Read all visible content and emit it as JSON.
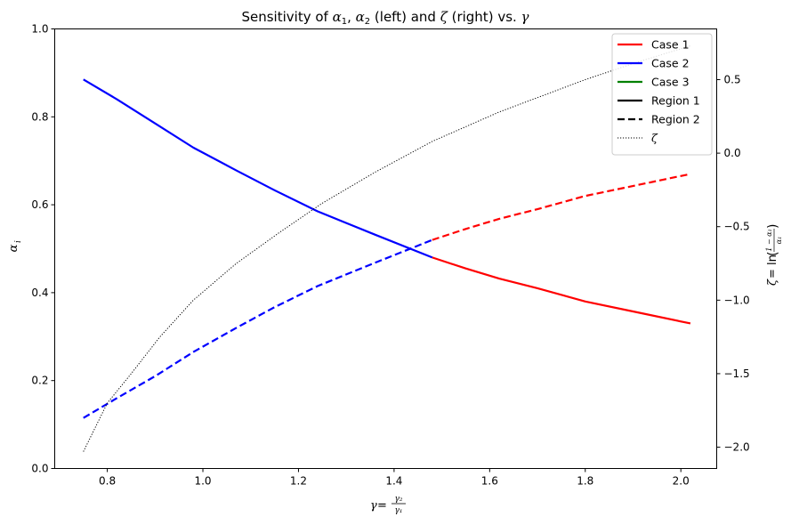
{
  "chart_data": {
    "type": "line",
    "title_parts": {
      "t1": "Sensitivity of ",
      "a1": "α",
      "a1sub": "1",
      "comma": ", ",
      "a2": "α",
      "a2sub": "2",
      "t2": " (left) and ",
      "zeta": "ζ",
      "t3": " (right) vs. ",
      "gamma": "γ"
    },
    "xlabel_parts": {
      "gamma": "γ",
      "eq": " = ",
      "num": "γ₂",
      "den": "γ₁"
    },
    "ylabel_left_parts": {
      "alpha": "α",
      "sub": "i"
    },
    "ylabel_right_parts": {
      "zeta": "ζ",
      "eq": " = ln",
      "num": "1 − α₁",
      "den": "α₁"
    },
    "xlim": [
      0.69,
      2.075
    ],
    "ylim": [
      0,
      1
    ],
    "y2lim": [
      -2.145,
      0.845
    ],
    "x_ticks": [
      0.8,
      1.0,
      1.2,
      1.4,
      1.6,
      1.8,
      2.0
    ],
    "x_tick_labels": [
      "0.8",
      "1.0",
      "1.2",
      "1.4",
      "1.6",
      "1.8",
      "2.0"
    ],
    "y_ticks": [
      0.0,
      0.2,
      0.4,
      0.6,
      0.8,
      1.0
    ],
    "y_tick_labels": [
      "0.0",
      "0.2",
      "0.4",
      "0.6",
      "0.8",
      "1.0"
    ],
    "y2_ticks": [
      -2.0,
      -1.5,
      -1.0,
      -0.5,
      0.0,
      0.5
    ],
    "y2_tick_labels": [
      "−2.0",
      "−1.5",
      "−1.0",
      "−0.5",
      "0.0",
      "0.5"
    ],
    "grid": false,
    "legend_position": "top-right",
    "legend": [
      {
        "label": "Case 1",
        "color": "#ff0000",
        "style": "solid"
      },
      {
        "label": "Case 2",
        "color": "#0000ff",
        "style": "solid"
      },
      {
        "label": "Case 3",
        "color": "#008000",
        "style": "solid"
      },
      {
        "label": "Region 1",
        "color": "#000000",
        "style": "solid"
      },
      {
        "label": "Region 2",
        "color": "#000000",
        "style": "dashed"
      },
      {
        "label": "ζ",
        "color": "#000000",
        "style": "dotted"
      }
    ],
    "series": [
      {
        "case": "Case 2",
        "region": "Region 1",
        "axis": "left",
        "color": "#0000ff",
        "style": "solid",
        "x": [
          0.75,
          0.82,
          0.9,
          0.98,
          1.07,
          1.15,
          1.24,
          1.36,
          1.48
        ],
        "y": [
          0.885,
          0.84,
          0.785,
          0.73,
          0.678,
          0.633,
          0.585,
          0.532,
          0.48
        ]
      },
      {
        "case": "Case 1",
        "region": "Region 1",
        "axis": "left",
        "color": "#ff0000",
        "style": "solid",
        "x": [
          1.48,
          1.55,
          1.62,
          1.7,
          1.8,
          1.91,
          2.02
        ],
        "y": [
          0.48,
          0.455,
          0.432,
          0.41,
          0.38,
          0.355,
          0.33
        ]
      },
      {
        "case": "Case 2",
        "region": "Region 2",
        "axis": "left",
        "color": "#0000ff",
        "style": "dashed",
        "x": [
          0.75,
          0.82,
          0.9,
          0.98,
          1.07,
          1.15,
          1.24,
          1.36,
          1.48
        ],
        "y": [
          0.115,
          0.16,
          0.21,
          0.265,
          0.32,
          0.367,
          0.415,
          0.468,
          0.52
        ]
      },
      {
        "case": "Case 1",
        "region": "Region 2",
        "axis": "left",
        "color": "#ff0000",
        "style": "dashed",
        "x": [
          1.48,
          1.55,
          1.62,
          1.7,
          1.8,
          1.91,
          2.02
        ],
        "y": [
          0.52,
          0.545,
          0.568,
          0.59,
          0.62,
          0.645,
          0.67
        ]
      },
      {
        "case": "ζ",
        "axis": "right",
        "color": "#000000",
        "style": "dotted",
        "x": [
          0.75,
          0.8,
          0.85,
          0.91,
          0.98,
          1.07,
          1.16,
          1.25,
          1.36,
          1.48,
          1.62,
          1.8,
          1.91,
          2.02
        ],
        "y": [
          -2.03,
          -1.7,
          -1.5,
          -1.25,
          -1.0,
          -0.75,
          -0.54,
          -0.34,
          -0.13,
          0.08,
          0.28,
          0.5,
          0.62,
          0.73
        ]
      }
    ]
  }
}
